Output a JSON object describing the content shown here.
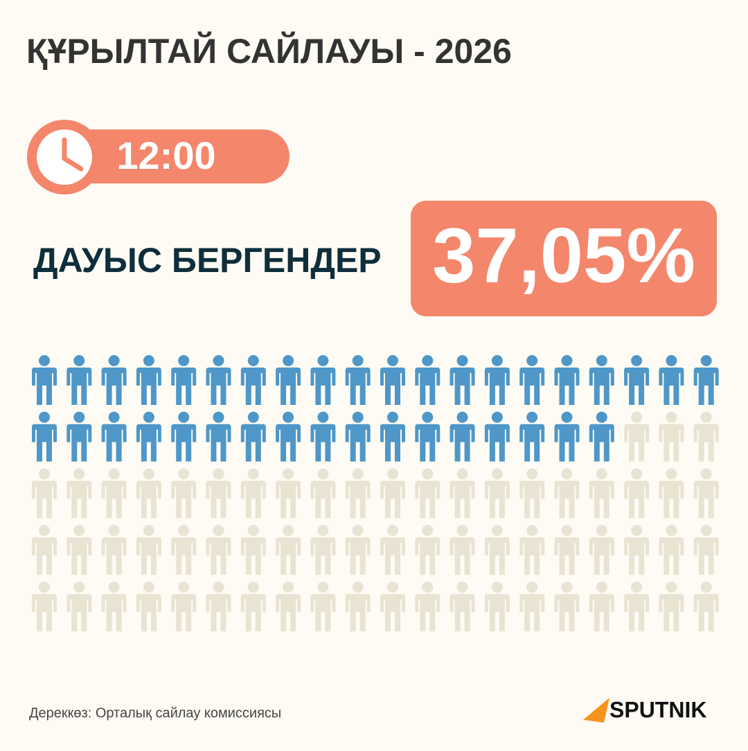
{
  "title": "ҚҰРЫЛТАЙ САЙЛАУЫ - 2026",
  "time": "12:00",
  "label": "ДАУЫС БЕРГЕНДЕР",
  "chart_data": {
    "type": "pictogram",
    "values": [
      37.05
    ],
    "value_labels": [
      "37,05%"
    ],
    "color": "#4e97c8",
    "empty_color": "#e9e3d3"
  },
  "source": "Дереккөз: Орталық сайлау комиссиясы",
  "logo": "SPUTNIK"
}
